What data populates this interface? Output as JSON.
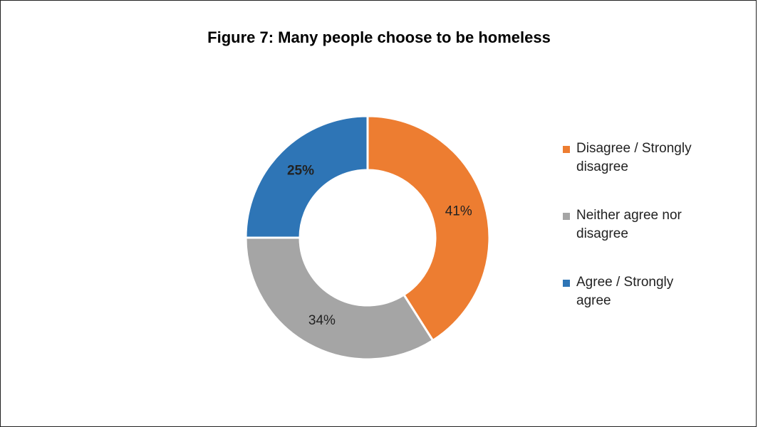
{
  "chart_data": {
    "type": "pie",
    "variant": "doughnut",
    "title": "Figure 7: Many people choose to be homeless",
    "categories": [
      "Disagree / Strongly disagree",
      "Neither agree nor disagree",
      "Agree / Strongly agree"
    ],
    "values": [
      41,
      34,
      25
    ],
    "value_labels": [
      "41%",
      "34%",
      "25%"
    ],
    "colors": [
      "#ED7D31",
      "#A5A5A5",
      "#2E75B6"
    ],
    "label_bold": [
      false,
      false,
      true
    ],
    "legend_position": "right"
  }
}
